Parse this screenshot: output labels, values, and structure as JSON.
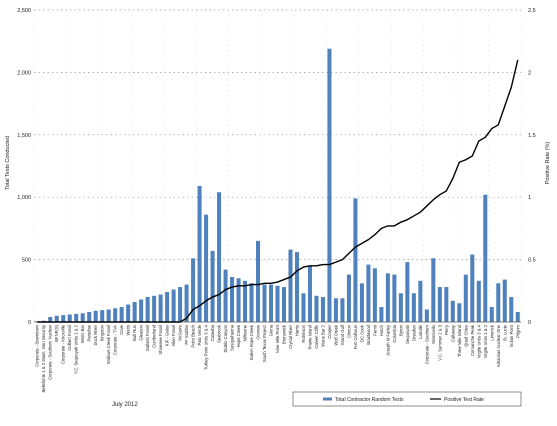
{
  "chart_data": {
    "type": "bar",
    "ylabel": "Total Tests Conducted",
    "y2label": "Positive Rate (%)",
    "ylim": [
      0,
      2500
    ],
    "y2lim": [
      0,
      2.5
    ],
    "yticks": [
      "0",
      "500",
      "1,000",
      "1,500",
      "2,000",
      "2,500"
    ],
    "y2ticks": [
      "0",
      "0.5",
      "1",
      "1.5",
      "2",
      "2.5"
    ],
    "grid": true,
    "legend_position": "bottom-right",
    "footnote": "July 2012",
    "colors": {
      "bar": "#4f81bd",
      "line": "#000000"
    },
    "categories": [
      "Corporate - Downtown",
      "Bellefonte 1 & 2 Maint. Gen Security",
      "Corporate - Southern Nuclear",
      "BFNP(S)",
      "Corporate - Knoxville",
      "Colbert Fossil",
      "Y.C. Sequoyah Units 1 & 2",
      "Watts Bar",
      "Paradise",
      "Duck River",
      "Kingston",
      "Widows Creek Fossil",
      "Corporate - TVA",
      "Cove",
      "Watts",
      "Bull Run",
      "Gleason",
      "Gallatin Fossil",
      "Cumberland",
      "Shawnee Fossil",
      "KIF - Galax",
      "Allen Fossil",
      "McGuire",
      "PF Stubbs",
      "Point Beach",
      "Palo Verde",
      "Turkey Point Units 3 & 4",
      "Catawba",
      "Seabrook",
      "Diablo Canyon",
      "Susquehanna",
      "Hope Creek",
      "Millstone",
      "Salem Hope Creek",
      "Oconee",
      "South Texas Project",
      "Ginna",
      "Nine Mile Point",
      "Brunswick",
      "Crystal River",
      "Harris",
      "Robinson",
      "Prairie Island",
      "Calvert Cliffs",
      "Watts Bar 2",
      "Cooper",
      "Wolf Creek",
      "Grand Gulf",
      "Clinton",
      "Fort Calhoun",
      "DC Cook",
      "Braidwood",
      "Fermi",
      "Hatch",
      "Joseph M Farley",
      "Columbia",
      "Byron",
      "Sequoyah",
      "Dresden",
      "LaSalle",
      "Corporate - Southern",
      "Monticello",
      "V.C. Summer 2 & 3",
      "Perry",
      "Callaway",
      "Three Mile Island",
      "Quad Cities",
      "Comanche Peak",
      "Vogtle Units 3 & 4",
      "Vogtle Units 1 & 2",
      "Limerick",
      "Arkansas Nuclear One",
      "St. Lucie",
      "Indian Point",
      "Pilgrim"
    ],
    "series": [
      {
        "name": "Total Contractor Random Tests",
        "kind": "bar",
        "axis": "left",
        "values": [
          5,
          10,
          40,
          50,
          55,
          60,
          65,
          70,
          80,
          90,
          95,
          100,
          110,
          120,
          140,
          160,
          180,
          200,
          210,
          220,
          240,
          260,
          280,
          300,
          510,
          1090,
          860,
          570,
          1040,
          420,
          360,
          350,
          330,
          310,
          650,
          300,
          300,
          290,
          280,
          580,
          560,
          230,
          450,
          210,
          200,
          2190,
          190,
          190,
          380,
          990,
          310,
          460,
          430,
          120,
          390,
          380,
          230,
          480,
          230,
          330,
          100,
          510,
          280,
          280,
          170,
          150,
          380,
          540,
          330,
          1020,
          120,
          310,
          340,
          200,
          80
        ]
      },
      {
        "name": "Positive Test Rate",
        "kind": "line",
        "axis": "right",
        "values": [
          0,
          0,
          0,
          0,
          0,
          0,
          0,
          0,
          0,
          0,
          0,
          0,
          0,
          0,
          0,
          0,
          0,
          0,
          0,
          0,
          0,
          0,
          0,
          0.03,
          0.1,
          0.13,
          0.17,
          0.2,
          0.22,
          0.26,
          0.28,
          0.29,
          0.29,
          0.3,
          0.3,
          0.31,
          0.31,
          0.32,
          0.34,
          0.36,
          0.41,
          0.44,
          0.45,
          0.45,
          0.46,
          0.46,
          0.48,
          0.5,
          0.55,
          0.6,
          0.63,
          0.66,
          0.7,
          0.75,
          0.77,
          0.77,
          0.8,
          0.82,
          0.85,
          0.88,
          0.93,
          0.98,
          1.02,
          1.05,
          1.15,
          1.28,
          1.3,
          1.33,
          1.45,
          1.48,
          1.55,
          1.58,
          1.73,
          1.88,
          2.1
        ]
      }
    ]
  }
}
